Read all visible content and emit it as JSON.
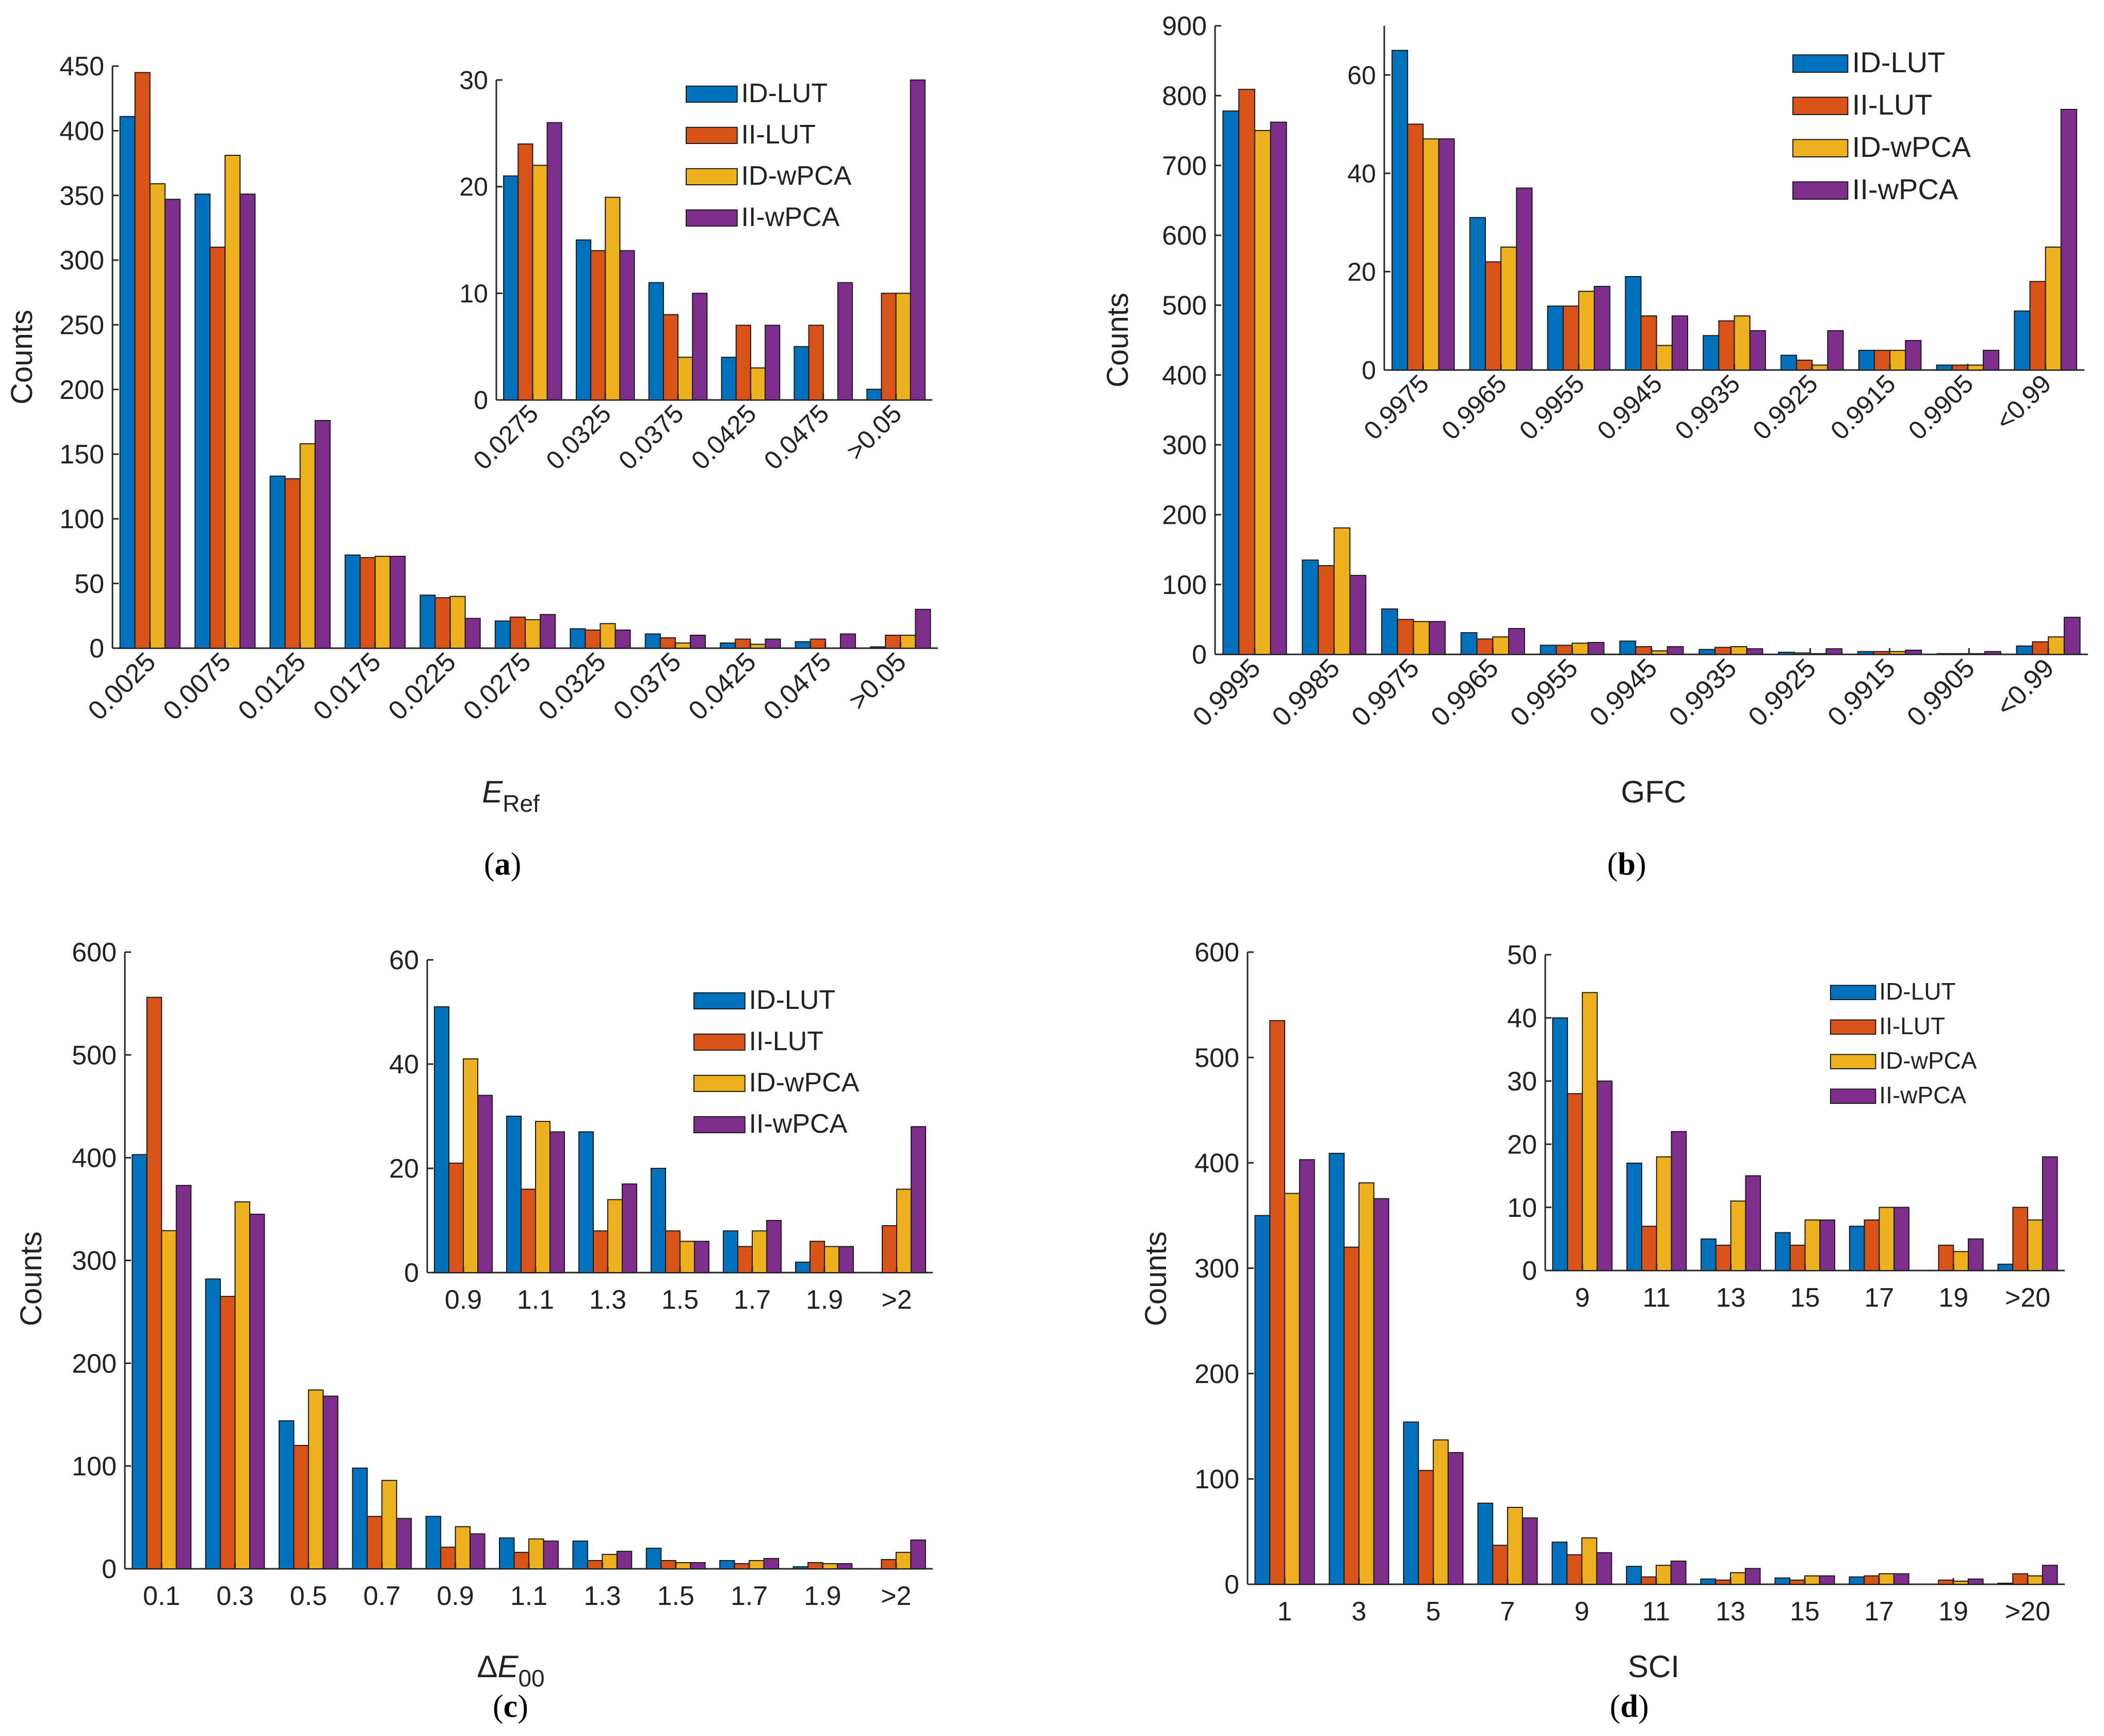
{
  "series_colors": [
    "#0072BD",
    "#D95319",
    "#EDB120",
    "#7E2F8E"
  ],
  "captions": [
    "a",
    "b",
    "c",
    "d"
  ],
  "chart_data": [
    {
      "id": "a",
      "type": "bar",
      "ylabel": "Counts",
      "xlabel": {
        "main": "E",
        "sub": "Ref",
        "prefix": ""
      },
      "categories": [
        "0.0025",
        "0.0075",
        "0.0125",
        "0.0175",
        "0.0225",
        "0.0275",
        "0.0325",
        "0.0375",
        "0.0425",
        "0.0475",
        ">0.05"
      ],
      "ylim": [
        0,
        450
      ],
      "yticks": [
        0,
        50,
        100,
        150,
        200,
        250,
        300,
        350,
        400,
        450
      ],
      "series": [
        {
          "name": "ID-LUT",
          "values": [
            411,
            351,
            133,
            72,
            41,
            21,
            15,
            11,
            4,
            5,
            1
          ]
        },
        {
          "name": "II-LUT",
          "values": [
            445,
            310,
            131,
            70,
            39,
            24,
            14,
            8,
            7,
            7,
            10
          ]
        },
        {
          "name": "ID-wPCA",
          "values": [
            359,
            381,
            158,
            71,
            40,
            22,
            19,
            4,
            3,
            0,
            10
          ]
        },
        {
          "name": "II-wPCA",
          "values": [
            347,
            351,
            176,
            71,
            23,
            26,
            14,
            10,
            7,
            11,
            30
          ]
        }
      ],
      "inset": {
        "categories": [
          "0.0275",
          "0.0325",
          "0.0375",
          "0.0425",
          "0.0475",
          ">0.05"
        ],
        "ylim": [
          0,
          30
        ],
        "yticks": [
          0,
          10,
          20,
          30
        ],
        "series": [
          {
            "name": "ID-LUT",
            "values": [
              21,
              15,
              11,
              4,
              5,
              1
            ]
          },
          {
            "name": "II-LUT",
            "values": [
              24,
              14,
              8,
              7,
              7,
              10
            ]
          },
          {
            "name": "ID-wPCA",
            "values": [
              22,
              19,
              4,
              3,
              0,
              10
            ]
          },
          {
            "name": "II-wPCA",
            "values": [
              26,
              14,
              10,
              7,
              11,
              30
            ]
          }
        ]
      }
    },
    {
      "id": "b",
      "type": "bar",
      "ylabel": "Counts",
      "xlabel": {
        "main": "GFC",
        "sub": "",
        "prefix": ""
      },
      "categories": [
        "0.9995",
        "0.9985",
        "0.9975",
        "0.9965",
        "0.9955",
        "0.9945",
        "0.9935",
        "0.9925",
        "0.9915",
        "0.9905",
        "<0.99"
      ],
      "ylim": [
        0,
        900
      ],
      "yticks": [
        0,
        100,
        200,
        300,
        400,
        500,
        600,
        700,
        800,
        900
      ],
      "series": [
        {
          "name": "ID-LUT",
          "values": [
            778,
            135,
            65,
            31,
            13,
            19,
            7,
            3,
            4,
            1,
            12
          ]
        },
        {
          "name": "II-LUT",
          "values": [
            809,
            127,
            50,
            22,
            13,
            11,
            10,
            2,
            4,
            1,
            18
          ]
        },
        {
          "name": "ID-wPCA",
          "values": [
            750,
            181,
            47,
            25,
            16,
            5,
            11,
            1,
            4,
            1,
            25
          ]
        },
        {
          "name": "II-wPCA",
          "values": [
            762,
            113,
            47,
            37,
            17,
            11,
            8,
            8,
            6,
            4,
            53
          ]
        }
      ],
      "inset": {
        "categories": [
          "0.9975",
          "0.9965",
          "0.9955",
          "0.9945",
          "0.9935",
          "0.9925",
          "0.9915",
          "0.9905",
          "<0.99"
        ],
        "ylim": [
          0,
          70
        ],
        "yticks": [
          0,
          20,
          40,
          60
        ],
        "series": [
          {
            "name": "ID-LUT",
            "values": [
              65,
              31,
              13,
              19,
              7,
              3,
              4,
              1,
              12
            ]
          },
          {
            "name": "II-LUT",
            "values": [
              50,
              22,
              13,
              11,
              10,
              2,
              4,
              1,
              18
            ]
          },
          {
            "name": "ID-wPCA",
            "values": [
              47,
              25,
              16,
              5,
              11,
              1,
              4,
              1,
              25
            ]
          },
          {
            "name": "II-wPCA",
            "values": [
              47,
              37,
              17,
              11,
              8,
              8,
              6,
              4,
              53
            ]
          }
        ]
      }
    },
    {
      "id": "c",
      "type": "bar",
      "ylabel": "Counts",
      "xlabel": {
        "main": "E",
        "sub": "00",
        "prefix": "Δ"
      },
      "categories": [
        "0.1",
        "0.3",
        "0.5",
        "0.7",
        "0.9",
        "1.1",
        "1.3",
        "1.5",
        "1.7",
        "1.9",
        ">2"
      ],
      "ylim": [
        0,
        600
      ],
      "yticks": [
        0,
        100,
        200,
        300,
        400,
        500,
        600
      ],
      "series": [
        {
          "name": "ID-LUT",
          "values": [
            403,
            282,
            144,
            98,
            51,
            30,
            27,
            20,
            8,
            2,
            0
          ]
        },
        {
          "name": "II-LUT",
          "values": [
            556,
            265,
            120,
            51,
            21,
            16,
            8,
            8,
            5,
            6,
            9
          ]
        },
        {
          "name": "ID-wPCA",
          "values": [
            329,
            357,
            174,
            86,
            41,
            29,
            14,
            6,
            8,
            5,
            16
          ]
        },
        {
          "name": "II-wPCA",
          "values": [
            373,
            345,
            168,
            49,
            34,
            27,
            17,
            6,
            10,
            5,
            28
          ]
        }
      ],
      "inset": {
        "categories": [
          "0.9",
          "1.1",
          "1.3",
          "1.5",
          "1.7",
          "1.9",
          ">2"
        ],
        "ylim": [
          0,
          60
        ],
        "yticks": [
          0,
          20,
          40,
          60
        ],
        "series": [
          {
            "name": "ID-LUT",
            "values": [
              51,
              30,
              27,
              20,
              8,
              2,
              0
            ]
          },
          {
            "name": "II-LUT",
            "values": [
              21,
              16,
              8,
              8,
              5,
              6,
              9
            ]
          },
          {
            "name": "ID-wPCA",
            "values": [
              41,
              29,
              14,
              6,
              8,
              5,
              16
            ]
          },
          {
            "name": "II-wPCA",
            "values": [
              34,
              27,
              17,
              6,
              10,
              5,
              28
            ]
          }
        ]
      }
    },
    {
      "id": "d",
      "type": "bar",
      "ylabel": "Counts",
      "xlabel": {
        "main": "SCI",
        "sub": "",
        "prefix": ""
      },
      "categories": [
        "1",
        "3",
        "5",
        "7",
        "9",
        "11",
        "13",
        "15",
        "17",
        "19",
        ">20"
      ],
      "ylim": [
        0,
        600
      ],
      "yticks": [
        0,
        100,
        200,
        300,
        400,
        500,
        600
      ],
      "series": [
        {
          "name": "ID-LUT",
          "values": [
            350,
            409,
            154,
            77,
            40,
            17,
            5,
            6,
            7,
            0,
            1
          ]
        },
        {
          "name": "II-LUT",
          "values": [
            535,
            320,
            108,
            37,
            28,
            7,
            4,
            4,
            8,
            4,
            10
          ]
        },
        {
          "name": "ID-wPCA",
          "values": [
            371,
            381,
            137,
            73,
            44,
            18,
            11,
            8,
            10,
            3,
            8
          ]
        },
        {
          "name": "II-wPCA",
          "values": [
            403,
            366,
            125,
            63,
            30,
            22,
            15,
            8,
            10,
            5,
            18
          ]
        }
      ],
      "inset": {
        "categories": [
          "9",
          "11",
          "13",
          "15",
          "17",
          "19",
          ">20"
        ],
        "ylim": [
          0,
          50
        ],
        "yticks": [
          0,
          10,
          20,
          30,
          40,
          50
        ],
        "series": [
          {
            "name": "ID-LUT",
            "values": [
              40,
              17,
              5,
              6,
              7,
              0,
              1
            ]
          },
          {
            "name": "II-LUT",
            "values": [
              28,
              7,
              4,
              4,
              8,
              4,
              10
            ]
          },
          {
            "name": "ID-wPCA",
            "values": [
              44,
              18,
              11,
              8,
              10,
              3,
              8
            ]
          },
          {
            "name": "II-wPCA",
            "values": [
              30,
              22,
              15,
              8,
              10,
              5,
              18
            ]
          }
        ]
      }
    }
  ]
}
